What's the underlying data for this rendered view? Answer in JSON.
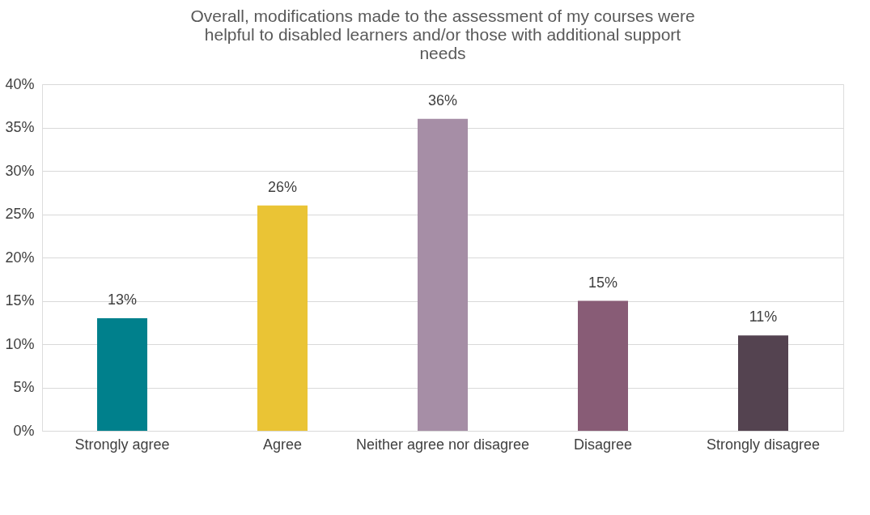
{
  "chart_data": {
    "type": "bar",
    "title": "Overall, modifications made to the assessment of my courses were helpful to disabled learners and/or those with additional support needs",
    "categories": [
      "Strongly agree",
      "Agree",
      "Neither agree nor disagree",
      "Disagree",
      "Strongly disagree"
    ],
    "values": [
      13,
      26,
      36,
      15,
      11
    ],
    "value_labels": [
      "13%",
      "26%",
      "36%",
      "15%",
      "11%"
    ],
    "colors": [
      "#00808c",
      "#eac435",
      "#a68ea6",
      "#885c76",
      "#544350"
    ],
    "ylim": [
      0,
      40
    ],
    "yticks": [
      {
        "value": 0,
        "label": "0%"
      },
      {
        "value": 5,
        "label": "5%"
      },
      {
        "value": 10,
        "label": "10%"
      },
      {
        "value": 15,
        "label": "15%"
      },
      {
        "value": 20,
        "label": "20%"
      },
      {
        "value": 25,
        "label": "25%"
      },
      {
        "value": 30,
        "label": "30%"
      },
      {
        "value": 35,
        "label": "35%"
      },
      {
        "value": 40,
        "label": "40%"
      }
    ],
    "grid": "y",
    "legend": false
  }
}
